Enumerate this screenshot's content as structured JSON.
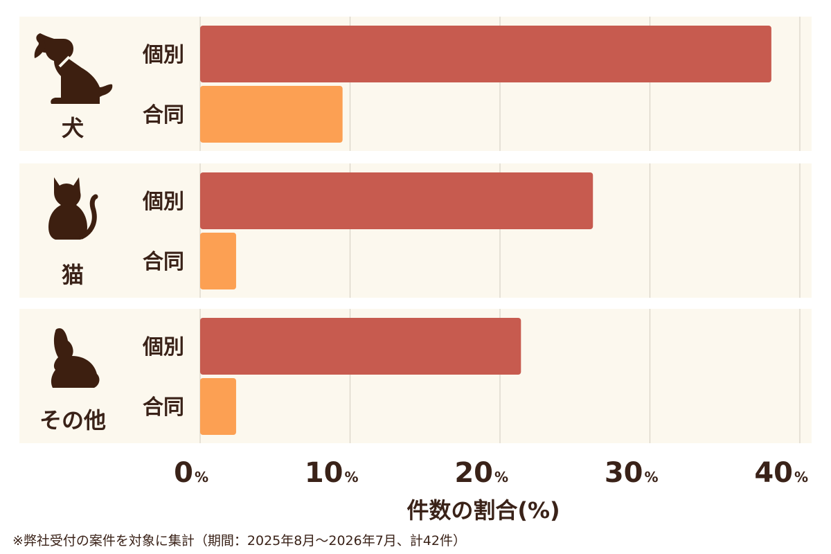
{
  "chart_data": {
    "type": "bar",
    "orientation": "horizontal",
    "categories": [
      {
        "label": "犬",
        "icon": "dog-icon"
      },
      {
        "label": "猫",
        "icon": "cat-icon"
      },
      {
        "label": "その他",
        "icon": "rabbit-icon"
      }
    ],
    "series": [
      {
        "name": "個別",
        "color": "#c75b4f",
        "values": [
          38.1,
          26.2,
          21.4
        ]
      },
      {
        "name": "合同",
        "color": "#fca053",
        "values": [
          9.5,
          2.4,
          2.4
        ]
      }
    ],
    "xlim": [
      0,
      40
    ],
    "ticks": [
      {
        "value": 0,
        "num": "0",
        "unit": "%"
      },
      {
        "value": 10,
        "num": "10",
        "unit": "%"
      },
      {
        "value": 20,
        "num": "20",
        "unit": "%"
      },
      {
        "value": 30,
        "num": "30",
        "unit": "%"
      },
      {
        "value": 40,
        "num": "40",
        "unit": "%"
      }
    ],
    "xlabel": "件数の割合(%)",
    "grid": true,
    "colors": {
      "panel": "#fcf8ee",
      "grid": "#d8d2c6",
      "text": "#3a2218",
      "icon": "#3d1f10"
    }
  },
  "footnote": "※弊社受付の案件を対象に集計（期間：2025年8月〜2026年7月、計42件）"
}
